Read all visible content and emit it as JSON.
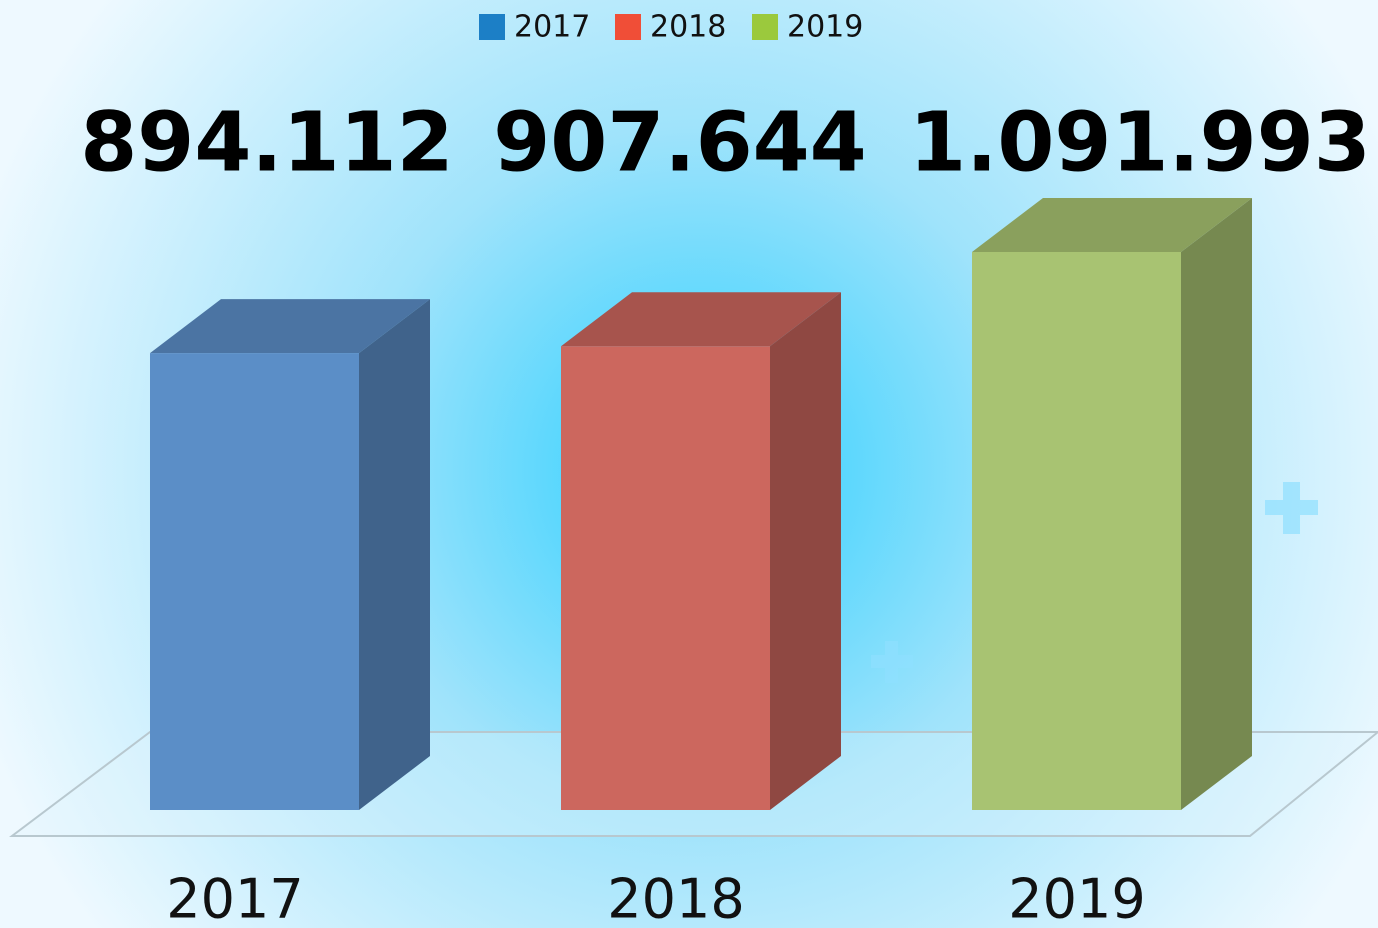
{
  "chart_data": {
    "type": "bar3d",
    "categories": [
      "2017",
      "2018",
      "2019"
    ],
    "series": [
      {
        "name": "2017",
        "color": "#5b8ec7",
        "legend_color": "#1c7fc6",
        "values": [
          894112,
          null,
          null
        ],
        "value_labels": [
          "894.112",
          null,
          null
        ]
      },
      {
        "name": "2018",
        "color": "#cc675e",
        "legend_color": "#f04e37",
        "values": [
          null,
          907644,
          null
        ],
        "value_labels": [
          null,
          "907.644",
          null
        ]
      },
      {
        "name": "2019",
        "color": "#a8c372",
        "legend_color": "#9bc93d",
        "values": [
          null,
          null,
          1091993
        ],
        "value_labels": [
          null,
          null,
          "1.091.993"
        ]
      }
    ]
  }
}
